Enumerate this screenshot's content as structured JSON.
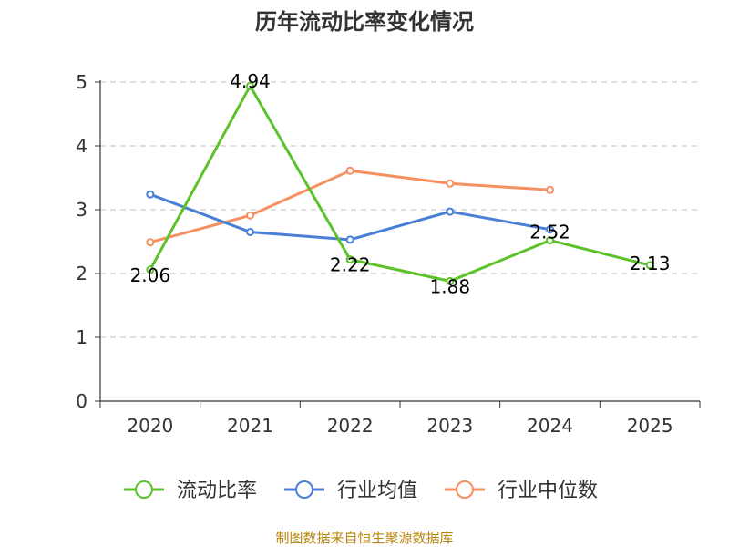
{
  "chart_data": {
    "type": "line",
    "title": "历年流动比率变化情况",
    "categories": [
      "2020",
      "2021",
      "2022",
      "2023",
      "2024",
      "2025"
    ],
    "ylim": [
      0,
      5
    ],
    "yticks": [
      0,
      1,
      2,
      3,
      4,
      5
    ],
    "grid": true,
    "legend_position": "bottom",
    "series": [
      {
        "name": "流动比率",
        "color": "#5cc22a",
        "values": [
          2.06,
          4.94,
          2.22,
          1.88,
          2.52,
          2.13
        ],
        "labels": [
          "2.06",
          "4.94",
          "2.22",
          "1.88",
          "2.52",
          "2.13"
        ]
      },
      {
        "name": "行业均值",
        "color": "#4a7fd8",
        "values": [
          3.24,
          2.65,
          2.53,
          2.97,
          2.69,
          null
        ]
      },
      {
        "name": "行业中位数",
        "color": "#f59060",
        "values": [
          2.49,
          2.91,
          3.61,
          3.41,
          3.31,
          null
        ]
      }
    ],
    "source": "制图数据来自恒生聚源数据库"
  }
}
